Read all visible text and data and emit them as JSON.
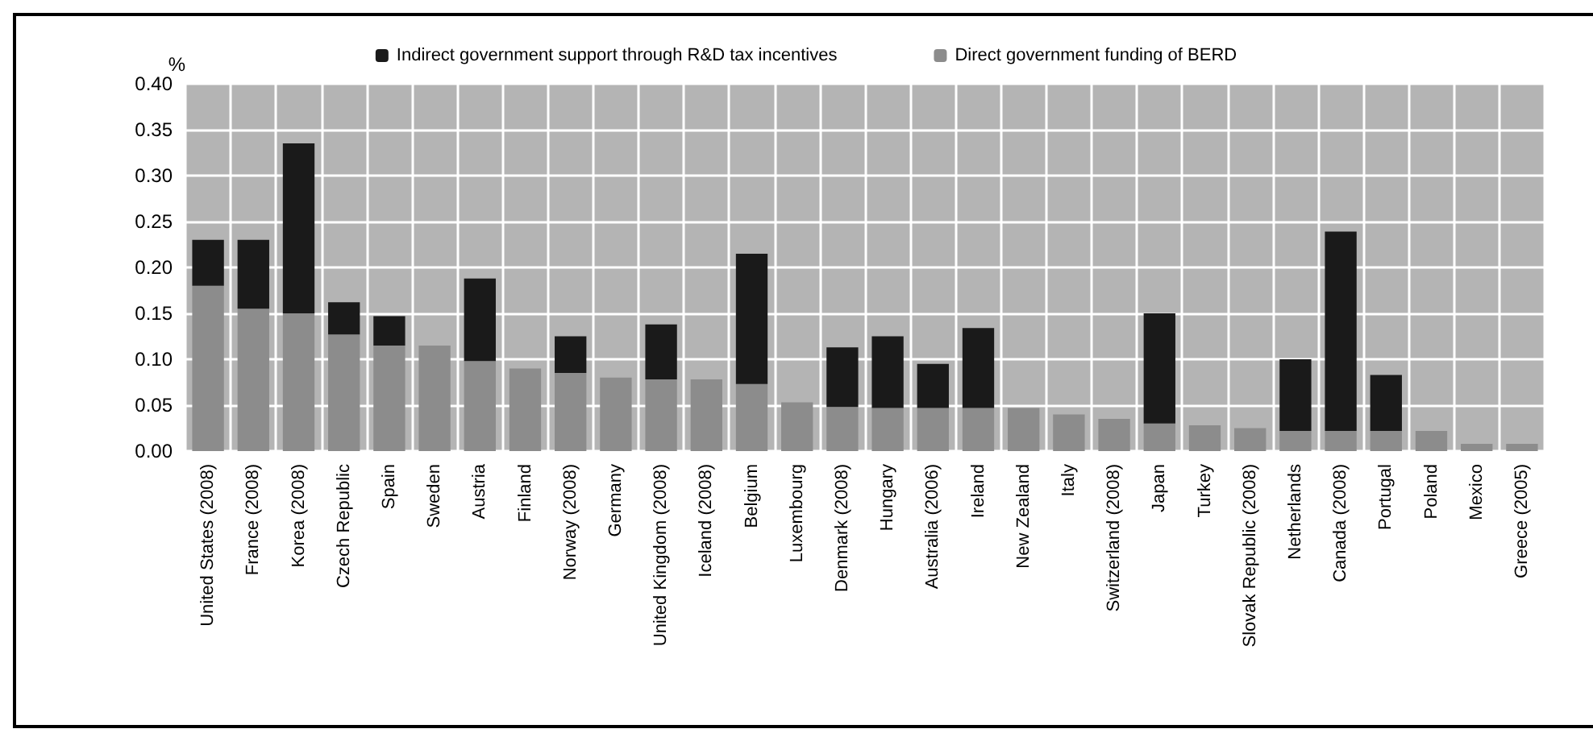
{
  "chart_data": {
    "type": "bar",
    "stacked": true,
    "ylabel": "%",
    "categories": [
      "United States (2008)",
      "France (2008)",
      "Korea (2008)",
      "Czech Republic",
      "Spain",
      "Sweden",
      "Austria",
      "Finland",
      "Norway (2008)",
      "Germany",
      "United Kingdom (2008)",
      "Iceland (2008)",
      "Belgium",
      "Luxembourg",
      "Denmark (2008)",
      "Hungary",
      "Australia (2006)",
      "Ireland",
      "New Zealand",
      "Italy",
      "Switzerland (2008)",
      "Japan",
      "Turkey",
      "Slovak Republic (2008)",
      "Netherlands",
      "Canada (2008)",
      "Portugal",
      "Poland",
      "Mexico",
      "Greece (2005)"
    ],
    "series": [
      {
        "name": "Direct government funding of BERD",
        "color": "#8c8c8c",
        "values": [
          0.18,
          0.155,
          0.15,
          0.127,
          0.115,
          0.115,
          0.098,
          0.09,
          0.085,
          0.08,
          0.078,
          0.078,
          0.073,
          0.053,
          0.048,
          0.047,
          0.047,
          0.047,
          0.047,
          0.04,
          0.035,
          0.03,
          0.028,
          0.025,
          0.022,
          0.022,
          0.022,
          0.022,
          0.008,
          0.008
        ]
      },
      {
        "name": "Indirect government support through R&D tax incentives",
        "color": "#1a1a1a",
        "values": [
          0.05,
          0.075,
          0.185,
          0.035,
          0.032,
          0,
          0.09,
          0,
          0.04,
          0,
          0.06,
          0,
          0.142,
          0,
          0.065,
          0.078,
          0.048,
          0.087,
          0,
          0,
          0,
          0.12,
          0,
          0,
          0.078,
          0.217,
          0.061,
          0,
          0,
          0
        ]
      }
    ],
    "ylim": [
      0,
      0.4
    ],
    "yticks": [
      {
        "value": 0,
        "label": "0.00"
      },
      0.05,
      {
        "value": 0.1,
        "label": "0.10"
      },
      0.15,
      {
        "value": 0.2,
        "label": "0.20"
      },
      0.25,
      {
        "value": 0.3,
        "label": "0.30"
      },
      0.35,
      {
        "value": 0.4,
        "label": "0.40"
      }
    ],
    "grid": true,
    "legend": "top"
  }
}
